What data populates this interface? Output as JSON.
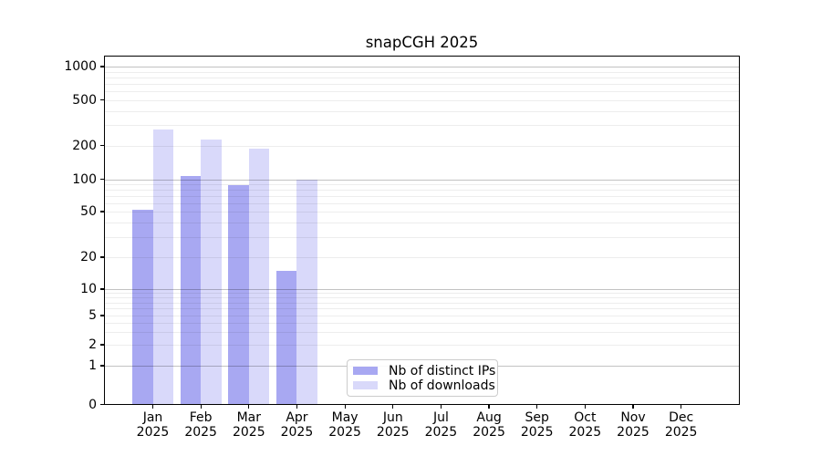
{
  "chart_data": {
    "type": "bar",
    "title": "snapCGH 2025",
    "year": "2025",
    "categories": [
      "Jan",
      "Feb",
      "Mar",
      "Apr",
      "May",
      "Jun",
      "Jul",
      "Aug",
      "Sep",
      "Oct",
      "Nov",
      "Dec"
    ],
    "series": [
      {
        "name": "Nb of distinct IPs",
        "color": "#a8a8f2",
        "values": [
          52,
          106,
          88,
          15,
          null,
          null,
          null,
          null,
          null,
          null,
          null,
          null
        ]
      },
      {
        "name": "Nb of downloads",
        "color": "#d9d9fa",
        "values": [
          278,
          226,
          186,
          100,
          null,
          null,
          null,
          null,
          null,
          null,
          null,
          null
        ]
      }
    ],
    "yticks": [
      0,
      1,
      2,
      5,
      10,
      20,
      50,
      100,
      200,
      500,
      1000
    ],
    "yscale": "log-like (0,1,2,5,10,20,50,100,200,500,1000)",
    "ylim": [
      0,
      1000
    ],
    "grid": "horizontal, minor + major (powers of 10)",
    "legend_position": "lower center"
  }
}
